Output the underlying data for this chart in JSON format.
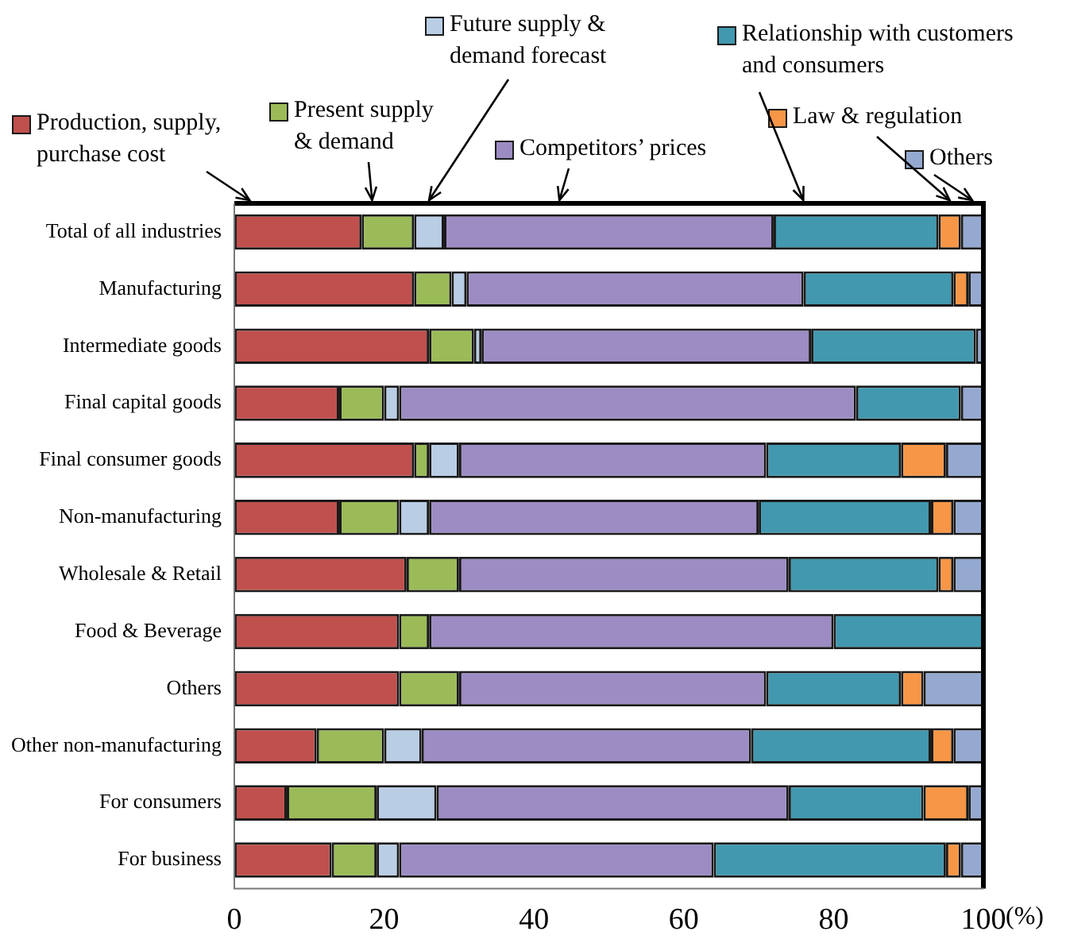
{
  "chart_data": {
    "type": "bar",
    "orientation": "horizontal",
    "stacked": true,
    "legend": "top",
    "grid": false,
    "xlabel": "(%)",
    "categories": [
      "Total of all industries",
      "Manufacturing",
      "Intermediate goods",
      "Final capital goods",
      "Final consumer goods",
      "Non-manufacturing",
      "Wholesale & Retail",
      "Food & Beverage",
      "Others",
      "Other non-manufacturing",
      "For consumers",
      "For business"
    ],
    "xlim": [
      0,
      100
    ],
    "xticks": [
      0,
      20,
      40,
      60,
      80,
      100
    ],
    "series": [
      {
        "name": "Production, supply, purchase cost",
        "color": "#c0504d",
        "values": [
          17,
          24,
          26,
          14,
          24,
          14,
          23,
          22,
          22,
          11,
          7,
          13
        ]
      },
      {
        "name": "Present supply & demand",
        "color": "#9bbb59",
        "values": [
          7,
          5,
          6,
          6,
          2,
          8,
          7,
          4,
          8,
          9,
          12,
          6
        ]
      },
      {
        "name": "Future supply & demand forecast",
        "color": "#b9cde5",
        "values": [
          4,
          2,
          1,
          2,
          4,
          4,
          0,
          0,
          0,
          5,
          8,
          3
        ]
      },
      {
        "name": "Competitors’ prices",
        "color": "#9d8cc4",
        "values": [
          44,
          45,
          44,
          61,
          41,
          44,
          44,
          54,
          41,
          44,
          47,
          42
        ]
      },
      {
        "name": "Relationship with customers and consumers",
        "color": "#4198af",
        "values": [
          22,
          20,
          22,
          14,
          18,
          23,
          20,
          20,
          18,
          24,
          18,
          31
        ]
      },
      {
        "name": "Law & regulation",
        "color": "#f79646",
        "values": [
          3,
          2,
          0,
          0,
          6,
          3,
          2,
          0,
          3,
          3,
          6,
          2
        ]
      },
      {
        "name": "Others",
        "color": "#95a9d0",
        "values": [
          3,
          2,
          1,
          3,
          5,
          4,
          4,
          0,
          8,
          4,
          2,
          3
        ]
      }
    ]
  }
}
